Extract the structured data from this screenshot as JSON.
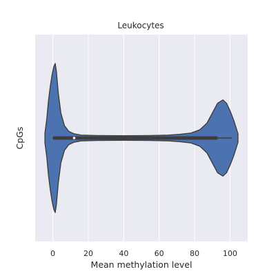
{
  "chart_data": {
    "type": "violin",
    "title": "Leukocytes",
    "xlabel": "Mean methylation level",
    "ylabel": "CpGs",
    "xlim": [
      -10,
      110
    ],
    "x_ticks": [
      0,
      20,
      40,
      60,
      80,
      100
    ],
    "grid": true,
    "colors": {
      "violin": "#4c72b0",
      "background": "#eaeaf2",
      "grid": "#ffffff",
      "outline": "#3d3d3d",
      "box": "#3d3d3d",
      "median": "#ffffff"
    },
    "density_profile": [
      {
        "x": -4.5,
        "d": 0.06
      },
      {
        "x": -3.5,
        "d": 0.22
      },
      {
        "x": -2.5,
        "d": 0.45
      },
      {
        "x": -1.5,
        "d": 0.62
      },
      {
        "x": -0.5,
        "d": 0.76
      },
      {
        "x": 0.5,
        "d": 0.86
      },
      {
        "x": 1.3,
        "d": 0.9
      },
      {
        "x": 2.0,
        "d": 0.8
      },
      {
        "x": 3.0,
        "d": 0.55
      },
      {
        "x": 4.5,
        "d": 0.3
      },
      {
        "x": 6.5,
        "d": 0.15
      },
      {
        "x": 9.0,
        "d": 0.08
      },
      {
        "x": 12.0,
        "d": 0.05
      },
      {
        "x": 16.0,
        "d": 0.035
      },
      {
        "x": 25.0,
        "d": 0.03
      },
      {
        "x": 40.0,
        "d": 0.028
      },
      {
        "x": 55.0,
        "d": 0.03
      },
      {
        "x": 65.0,
        "d": 0.035
      },
      {
        "x": 72.0,
        "d": 0.045
      },
      {
        "x": 78.0,
        "d": 0.06
      },
      {
        "x": 83.0,
        "d": 0.1
      },
      {
        "x": 87.0,
        "d": 0.18
      },
      {
        "x": 90.0,
        "d": 0.3
      },
      {
        "x": 93.0,
        "d": 0.42
      },
      {
        "x": 96.0,
        "d": 0.46
      },
      {
        "x": 98.0,
        "d": 0.42
      },
      {
        "x": 100.0,
        "d": 0.33
      },
      {
        "x": 102.0,
        "d": 0.22
      },
      {
        "x": 103.5,
        "d": 0.12
      },
      {
        "x": 104.5,
        "d": 0.05
      }
    ],
    "box": {
      "q1": 0,
      "q3": 93,
      "median": 12,
      "whisker_low": 0,
      "whisker_high": 101
    }
  }
}
